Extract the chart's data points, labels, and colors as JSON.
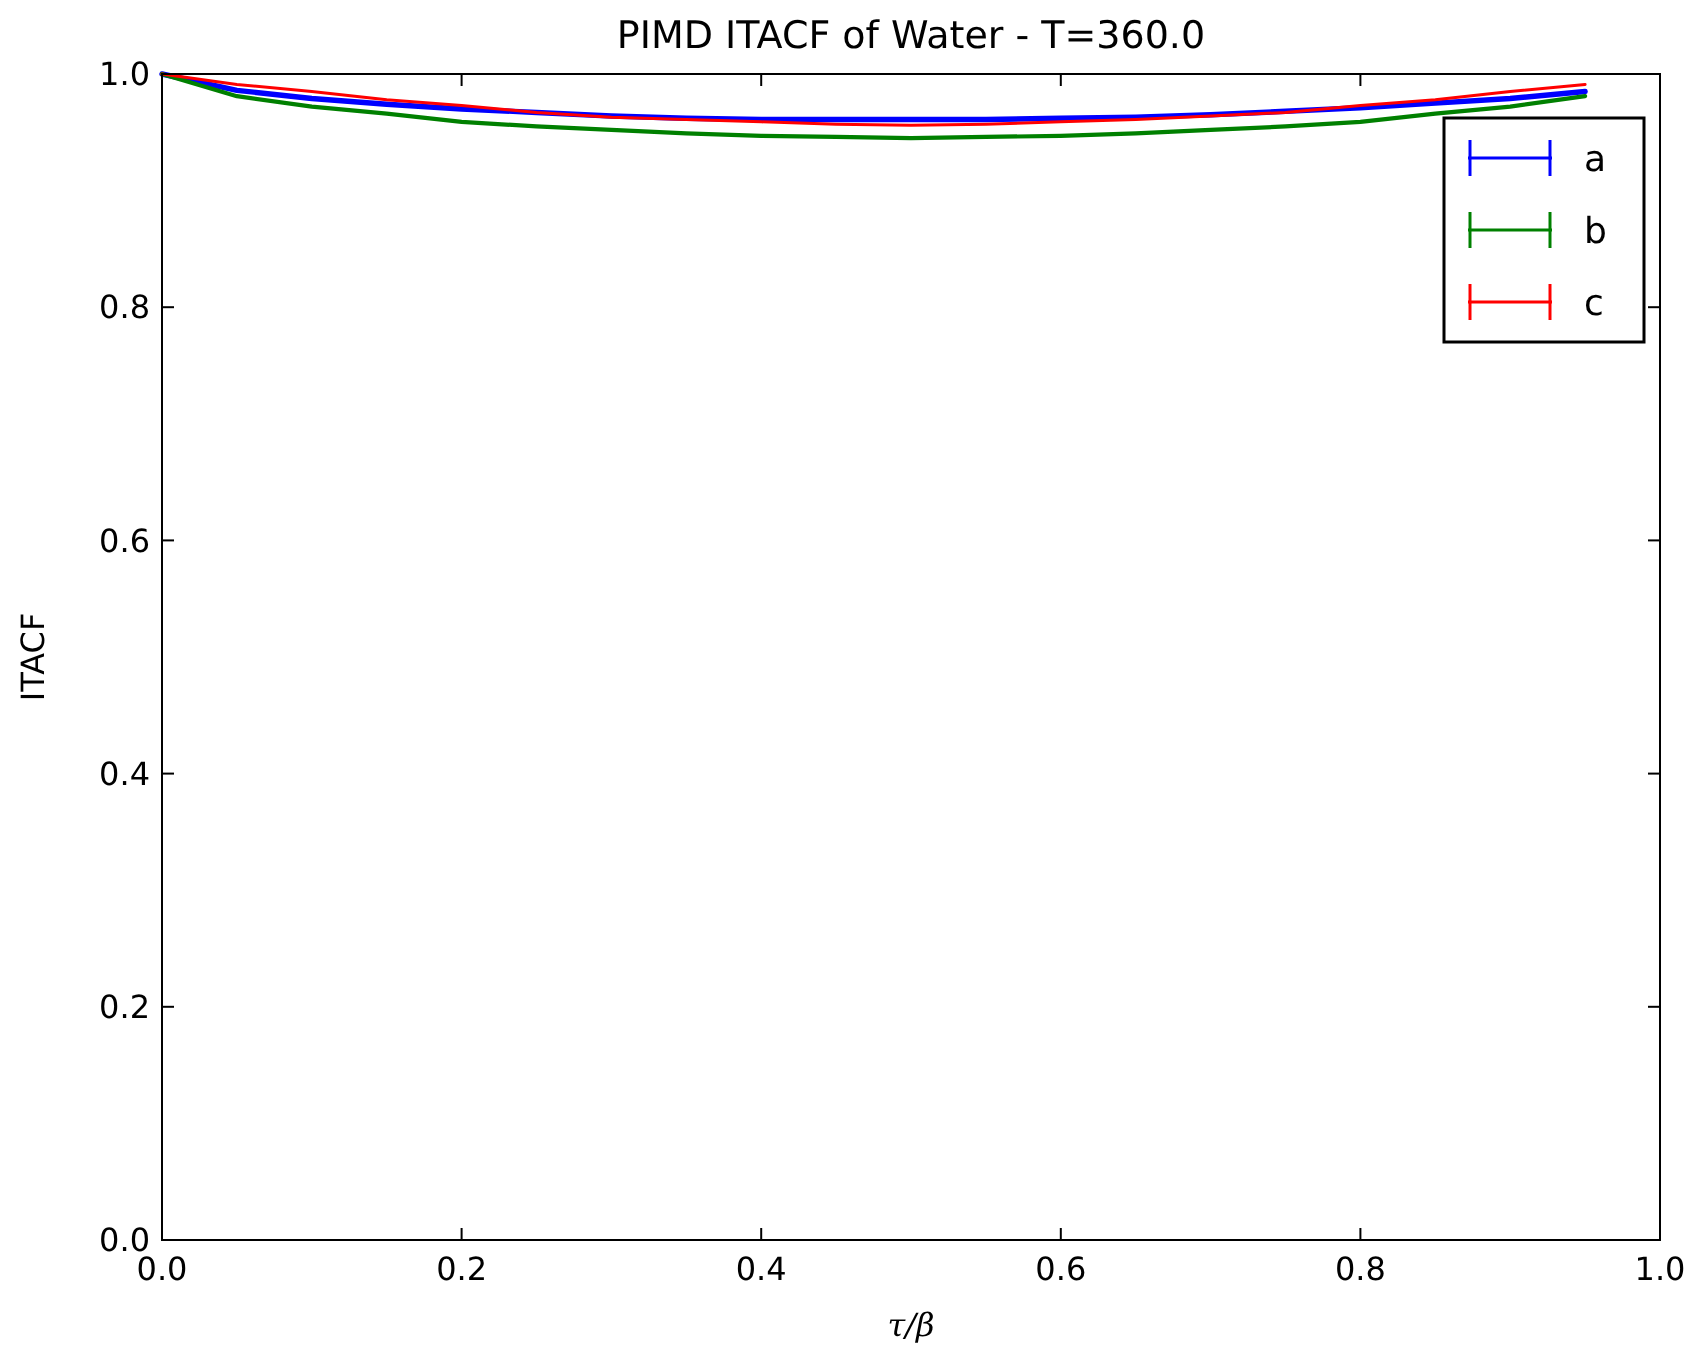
{
  "chart_data": {
    "type": "line",
    "title": "PIMD ITACF of Water - T=360.0",
    "xlabel": "τ/β",
    "ylabel": "ITACF",
    "x": [
      0,
      0.05,
      0.1,
      0.15,
      0.2,
      0.25,
      0.3,
      0.35,
      0.4,
      0.45,
      0.5,
      0.55,
      0.6,
      0.65,
      0.7,
      0.75,
      0.8,
      0.85,
      0.9,
      0.95
    ],
    "series": [
      {
        "name": "a",
        "color": "#0000ff",
        "values": [
          1,
          0.986,
          0.979,
          0.974,
          0.97,
          0.967,
          0.964,
          0.962,
          0.961,
          0.961,
          0.961,
          0.961,
          0.962,
          0.963,
          0.965,
          0.968,
          0.971,
          0.975,
          0.979,
          0.985
        ]
      },
      {
        "name": "b",
        "color": "#008000",
        "values": [
          1,
          0.981,
          0.972,
          0.966,
          0.959,
          0.955,
          0.952,
          0.949,
          0.947,
          0.946,
          0.945,
          0.946,
          0.947,
          0.949,
          0.952,
          0.955,
          0.959,
          0.966,
          0.972,
          0.981
        ]
      },
      {
        "name": "c",
        "color": "#ff0000",
        "values": [
          1,
          0.991,
          0.985,
          0.978,
          0.973,
          0.967,
          0.963,
          0.961,
          0.959,
          0.957,
          0.956,
          0.957,
          0.959,
          0.961,
          0.964,
          0.967,
          0.973,
          0.978,
          0.985,
          0.991
        ]
      }
    ],
    "xlim": [
      0,
      1
    ],
    "ylim": [
      0,
      1
    ],
    "xticks": [
      {
        "value": 0,
        "label": "0.0"
      },
      0.2,
      0.4,
      0.6,
      0.8,
      {
        "value": 1,
        "label": "1.0"
      }
    ],
    "yticks": [
      {
        "value": 0,
        "label": "0.0"
      },
      0.2,
      0.4,
      0.6,
      0.8,
      {
        "value": 1,
        "label": "1.0"
      }
    ],
    "legend": "top right",
    "grid": false
  }
}
